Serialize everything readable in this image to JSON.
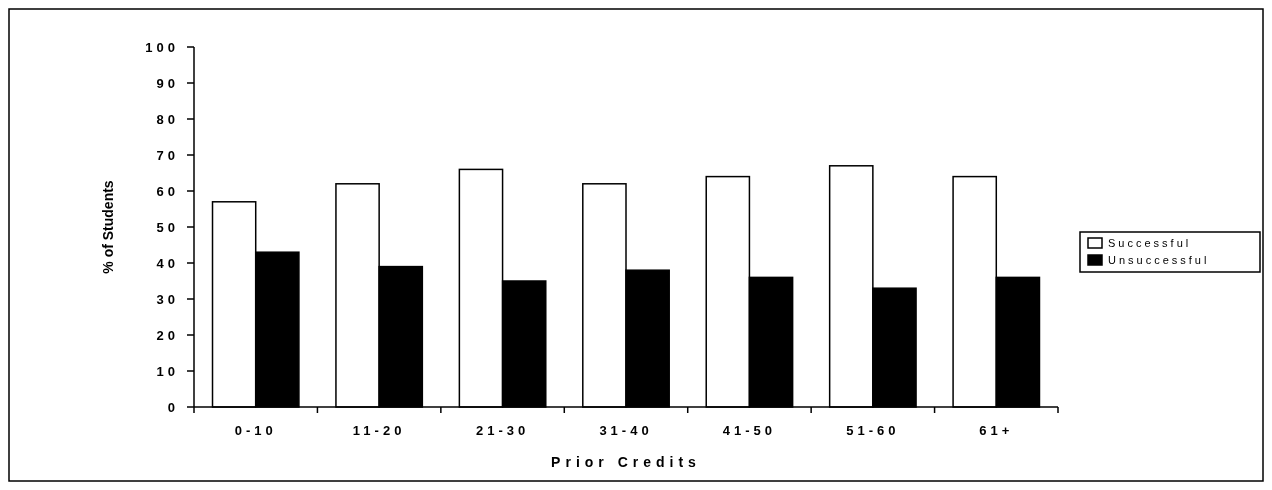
{
  "chart_data": {
    "type": "bar",
    "xlabel": "Prior Credits",
    "ylabel": "% of Students",
    "categories": [
      "0-10",
      "11-20",
      "21-30",
      "31-40",
      "41-50",
      "51-60",
      "61+"
    ],
    "series": [
      {
        "name": "Successful",
        "color": "#ffffff",
        "values": [
          57,
          62,
          66,
          62,
          64,
          67,
          64
        ]
      },
      {
        "name": "Unsuccessful",
        "color": "#000000",
        "values": [
          43,
          39,
          35,
          38,
          36,
          33,
          36
        ]
      }
    ],
    "ylim": [
      0,
      100
    ],
    "yticks": [
      0,
      10,
      20,
      30,
      40,
      50,
      60,
      70,
      80,
      90,
      100
    ],
    "grid": false,
    "legend": "right"
  }
}
